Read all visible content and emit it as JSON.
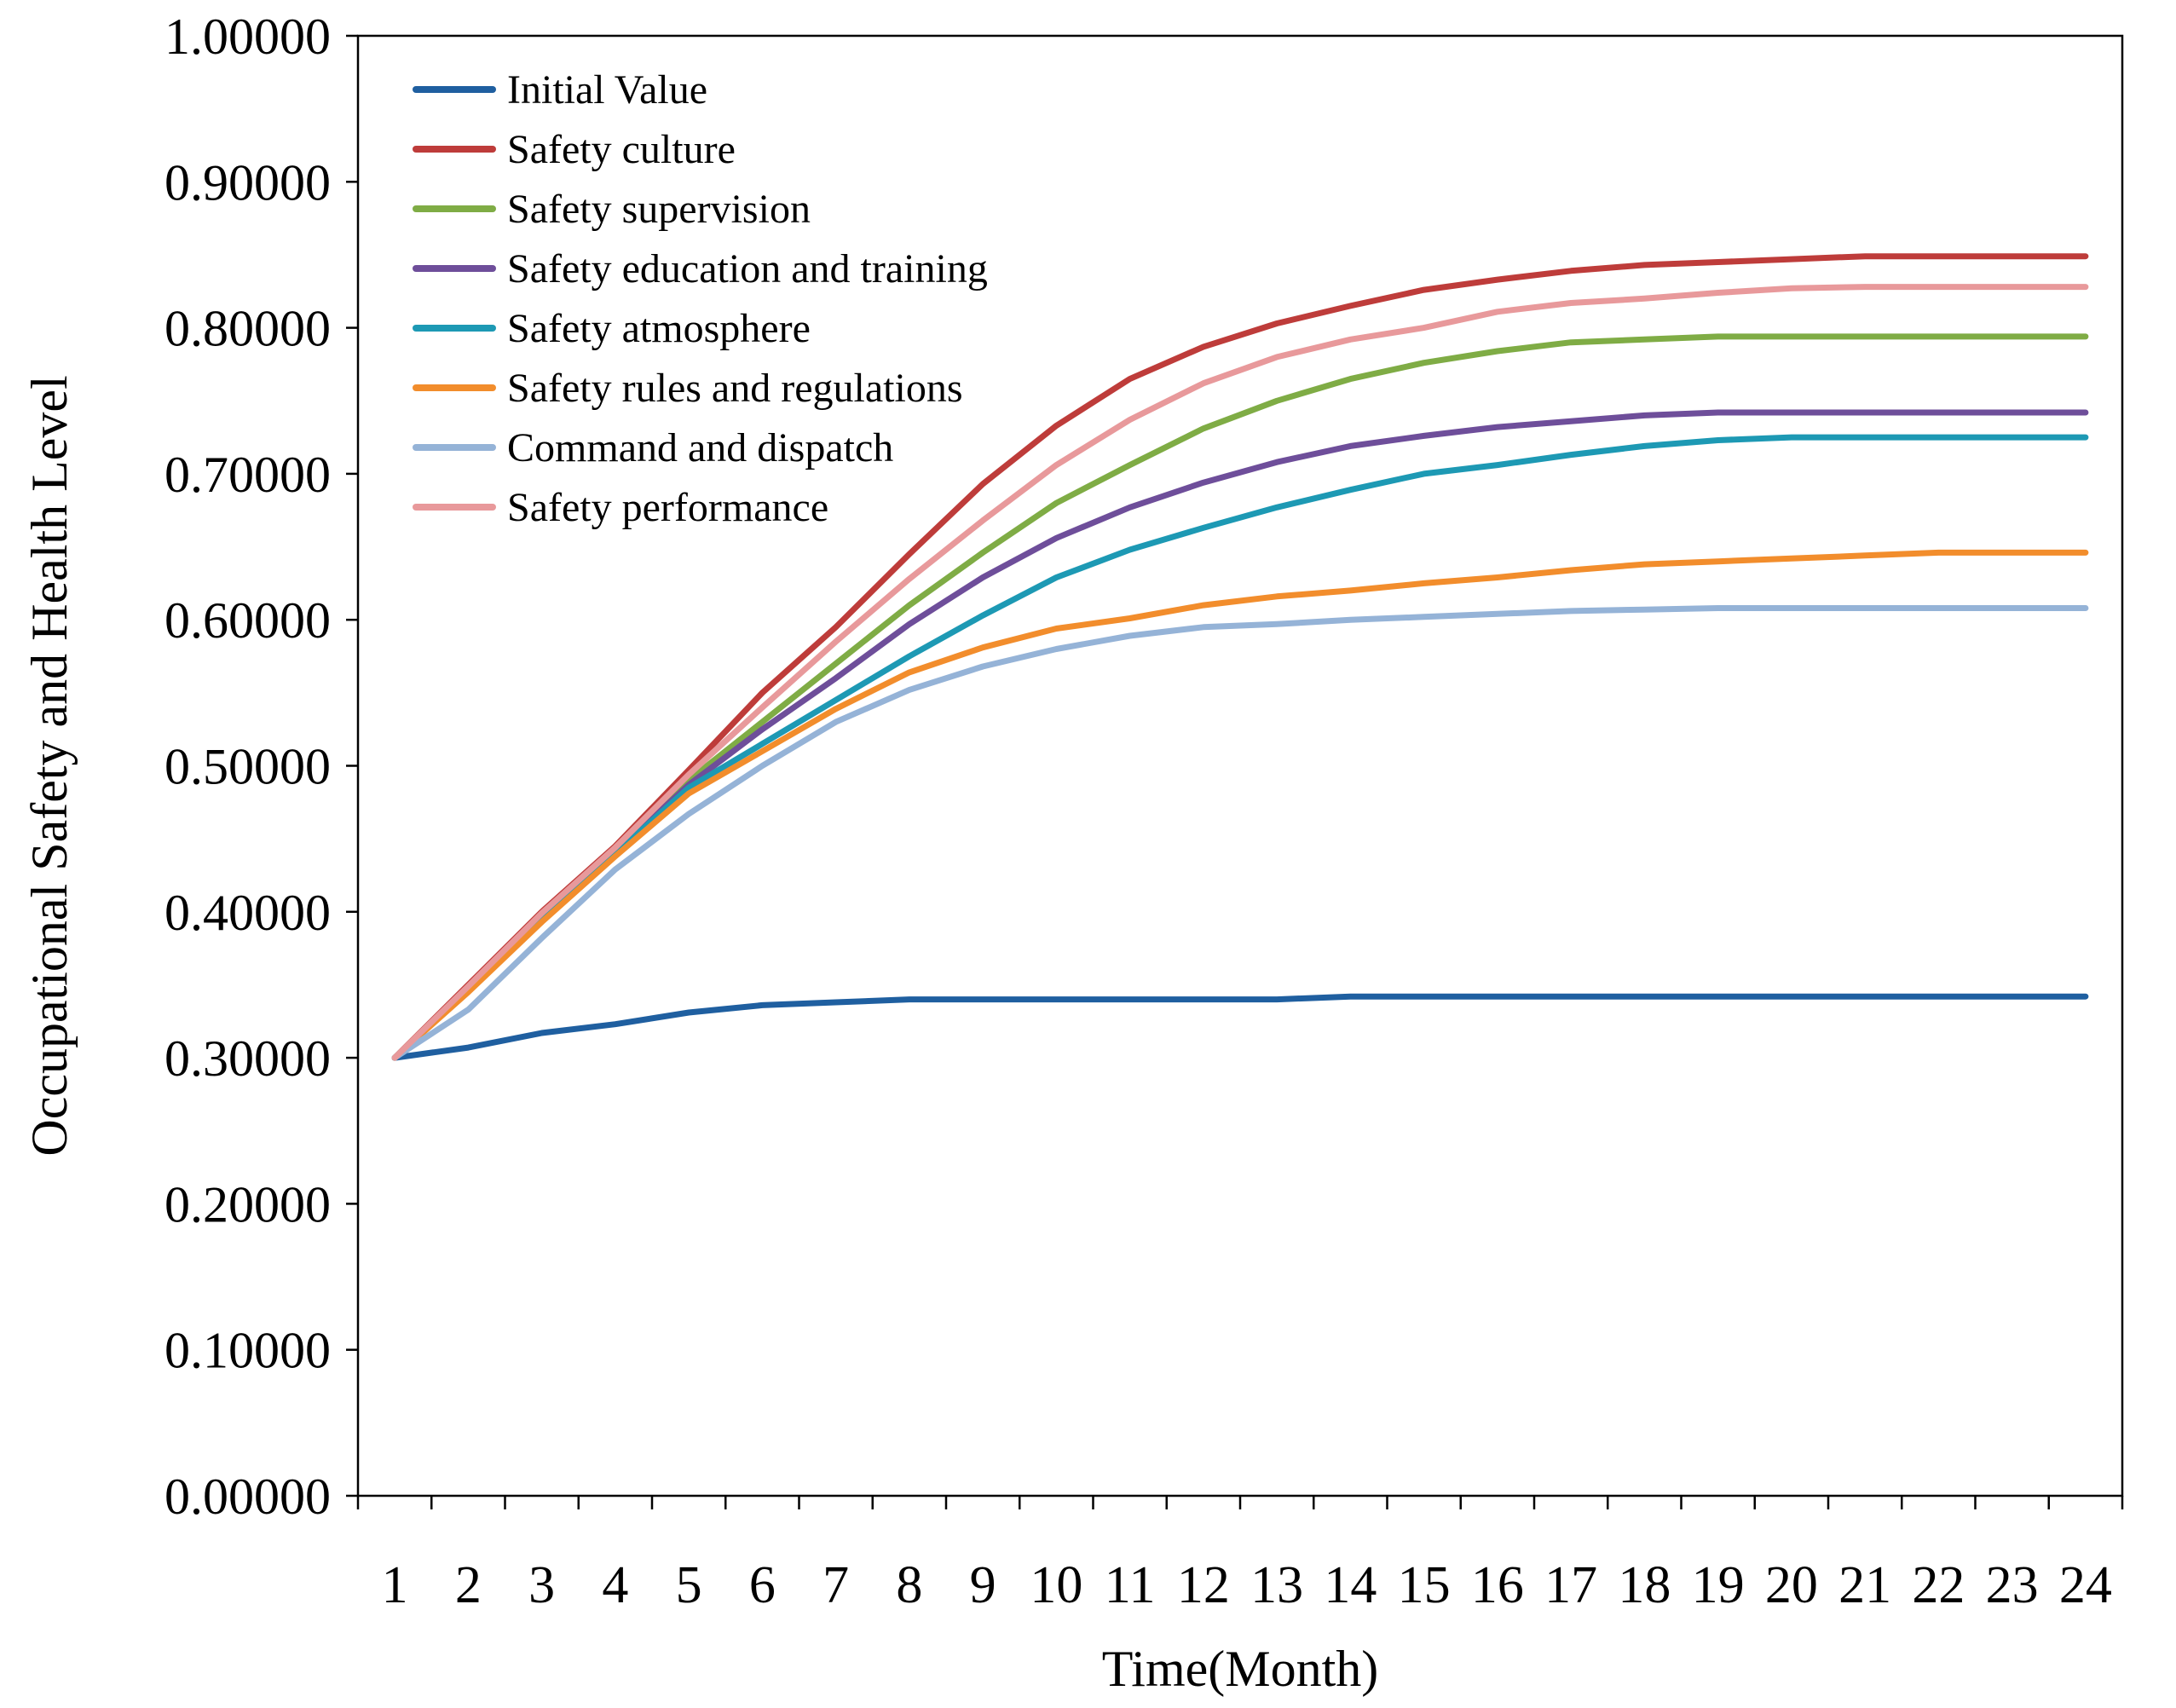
{
  "chart_data": {
    "type": "line",
    "title": "",
    "xlabel": "Time(Month)",
    "ylabel": "Occupational Safety and Health Level",
    "ylim": [
      0,
      1
    ],
    "yticks": [
      "0.00000",
      "0.10000",
      "0.20000",
      "0.30000",
      "0.40000",
      "0.50000",
      "0.60000",
      "0.70000",
      "0.80000",
      "0.90000",
      "1.00000"
    ],
    "x": [
      "1",
      "2",
      "3",
      "4",
      "5",
      "6",
      "7",
      "8",
      "9",
      "10",
      "11",
      "12",
      "13",
      "14",
      "15",
      "16",
      "17",
      "18",
      "19",
      "20",
      "21",
      "22",
      "23",
      "24"
    ],
    "legend_position": "top-left",
    "series": [
      {
        "name": "Initial Value",
        "color": "#1f5fa0",
        "values": [
          0.3,
          0.307,
          0.317,
          0.323,
          0.331,
          0.336,
          0.338,
          0.34,
          0.34,
          0.34,
          0.34,
          0.34,
          0.34,
          0.342,
          0.342,
          0.342,
          0.342,
          0.342,
          0.342,
          0.342,
          0.342,
          0.342,
          0.342,
          0.342
        ]
      },
      {
        "name": "Safety culture",
        "color": "#be3c3a",
        "values": [
          0.3,
          0.35,
          0.4,
          0.445,
          0.497,
          0.55,
          0.595,
          0.645,
          0.693,
          0.733,
          0.765,
          0.787,
          0.803,
          0.815,
          0.826,
          0.833,
          0.839,
          0.843,
          0.845,
          0.847,
          0.849,
          0.849,
          0.849,
          0.849
        ]
      },
      {
        "name": "Safety supervision",
        "color": "#7fac45",
        "values": [
          0.3,
          0.348,
          0.397,
          0.443,
          0.49,
          0.53,
          0.57,
          0.61,
          0.646,
          0.68,
          0.706,
          0.731,
          0.75,
          0.765,
          0.776,
          0.784,
          0.79,
          0.792,
          0.794,
          0.794,
          0.794,
          0.794,
          0.794,
          0.794
        ]
      },
      {
        "name": "Safety education and training",
        "color": "#6e4e9a",
        "values": [
          0.3,
          0.347,
          0.396,
          0.441,
          0.487,
          0.525,
          0.56,
          0.597,
          0.629,
          0.656,
          0.677,
          0.694,
          0.708,
          0.719,
          0.726,
          0.732,
          0.736,
          0.74,
          0.742,
          0.742,
          0.742,
          0.742,
          0.742,
          0.742
        ]
      },
      {
        "name": "Safety atmosphere",
        "color": "#1d99b4",
        "values": [
          0.3,
          0.346,
          0.395,
          0.44,
          0.485,
          0.515,
          0.545,
          0.575,
          0.603,
          0.629,
          0.648,
          0.663,
          0.677,
          0.689,
          0.7,
          0.706,
          0.713,
          0.719,
          0.723,
          0.725,
          0.725,
          0.725,
          0.725,
          0.725
        ]
      },
      {
        "name": "Safety rules and regulations",
        "color": "#f28d2c",
        "values": [
          0.3,
          0.345,
          0.393,
          0.438,
          0.481,
          0.51,
          0.539,
          0.564,
          0.581,
          0.594,
          0.601,
          0.61,
          0.616,
          0.62,
          0.625,
          0.629,
          0.634,
          0.638,
          0.64,
          0.642,
          0.644,
          0.646,
          0.646,
          0.646
        ]
      },
      {
        "name": "Command and dispatch",
        "color": "#95b3d7",
        "values": [
          0.3,
          0.333,
          0.382,
          0.429,
          0.467,
          0.5,
          0.53,
          0.552,
          0.568,
          0.58,
          0.589,
          0.595,
          0.597,
          0.6,
          0.602,
          0.604,
          0.606,
          0.607,
          0.608,
          0.608,
          0.608,
          0.608,
          0.608,
          0.608
        ]
      },
      {
        "name": "Safety performance",
        "color": "#e8999b",
        "values": [
          0.3,
          0.349,
          0.399,
          0.444,
          0.494,
          0.54,
          0.585,
          0.628,
          0.668,
          0.706,
          0.737,
          0.762,
          0.78,
          0.792,
          0.8,
          0.811,
          0.817,
          0.82,
          0.824,
          0.827,
          0.828,
          0.828,
          0.828,
          0.828
        ]
      }
    ]
  }
}
